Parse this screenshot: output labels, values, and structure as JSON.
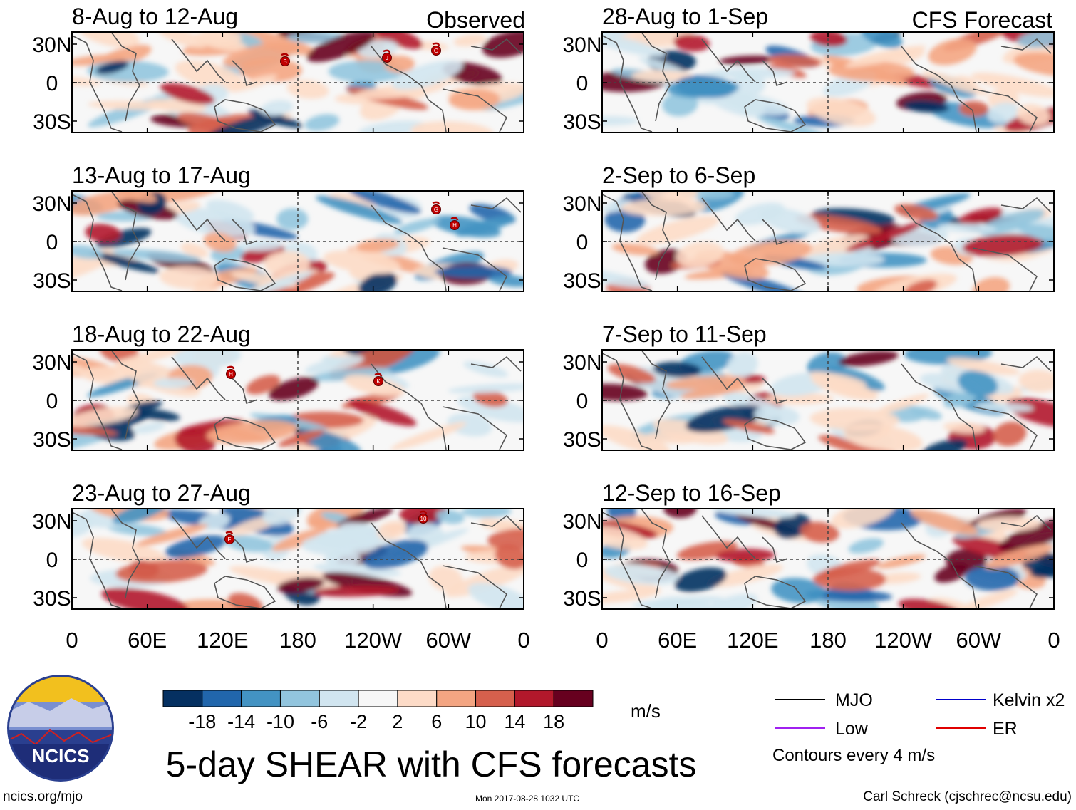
{
  "panels": {
    "observed": [
      {
        "label": "8-Aug to 12-Aug"
      },
      {
        "label": "13-Aug to 17-Aug"
      },
      {
        "label": "18-Aug to 22-Aug"
      },
      {
        "label": "23-Aug to 27-Aug"
      }
    ],
    "forecast": [
      {
        "label": "28-Aug to 1-Sep"
      },
      {
        "label": "2-Sep to 6-Sep"
      },
      {
        "label": "7-Sep to 11-Sep"
      },
      {
        "label": "12-Sep to 16-Sep"
      }
    ]
  },
  "column_titles": {
    "observed": "Observed",
    "forecast": "CFS Forecast"
  },
  "lat_labels": [
    "30N",
    "0",
    "30S"
  ],
  "lon_labels": [
    "0",
    "60E",
    "120E",
    "180",
    "120W",
    "60W",
    "0"
  ],
  "storms": [
    {
      "panel": "obs-1",
      "letter": "B"
    },
    {
      "panel": "obs-1",
      "letter": "J"
    },
    {
      "panel": "obs-1",
      "letter": "G"
    },
    {
      "panel": "obs-2",
      "letter": "G"
    },
    {
      "panel": "obs-2",
      "letter": "H"
    },
    {
      "panel": "obs-3",
      "letter": "H"
    },
    {
      "panel": "obs-3",
      "letter": "K"
    },
    {
      "panel": "obs-4",
      "letter": "F"
    },
    {
      "panel": "obs-4",
      "letter": "10"
    }
  ],
  "colorbar": {
    "tick_labels": [
      "-18",
      "-14",
      "-10",
      "-6",
      "-2",
      "2",
      "6",
      "10",
      "14",
      "18"
    ],
    "colors": [
      "#053061",
      "#2166ac",
      "#4393c3",
      "#92c5de",
      "#d1e5f0",
      "#f7f7f7",
      "#fddbc7",
      "#f4a582",
      "#d6604d",
      "#b2182b",
      "#67001f"
    ],
    "unit": "m/s"
  },
  "legend": {
    "items": [
      {
        "label": "MJO",
        "color": "#000000"
      },
      {
        "label": "Kelvin x2",
        "color": "#0000cc"
      },
      {
        "label": "Low",
        "color": "#a020f0"
      },
      {
        "label": "ER",
        "color": "#e00000"
      }
    ],
    "note": "Contours every 4 m/s"
  },
  "logo_text": "NCICS",
  "main_title": "5-day SHEAR with CFS forecasts",
  "footer": {
    "url": "ncics.org/mjo",
    "timestamp": "Mon 2017-08-28 1032 UTC",
    "credit": "Carl Schreck (cjschrec@ncsu.edu)"
  }
}
